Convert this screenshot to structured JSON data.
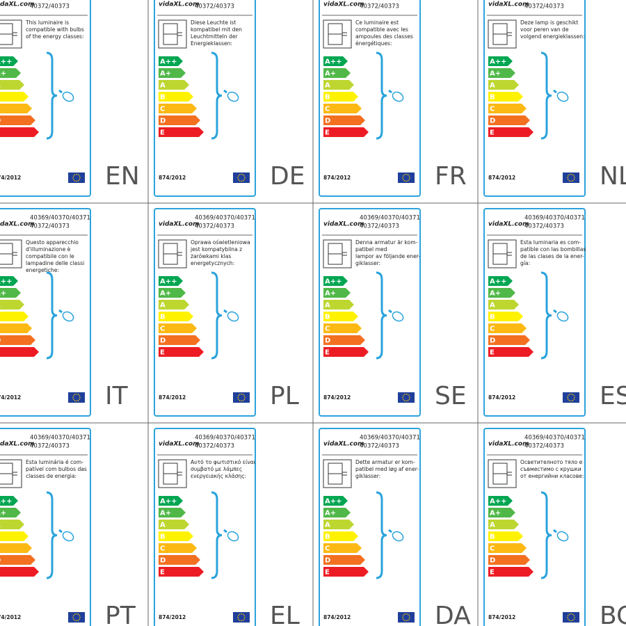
{
  "logo": "vidaXL.com",
  "models": [
    "40369/40370/40371",
    "40372/40373"
  ],
  "regulation": "874/2012",
  "energy_classes": [
    "A++",
    "A+",
    "A",
    "B",
    "C",
    "D",
    "E"
  ],
  "cells": [
    {
      "code": "EN",
      "text": [
        "This luminaire is",
        "compatible with bulbs",
        "of the energy classes:"
      ]
    },
    {
      "code": "DE",
      "text": [
        "Diese Leuchte ist",
        "kompatibel mit den",
        "Leuchtmitteln der",
        "Energieklassen:"
      ]
    },
    {
      "code": "FR",
      "text": [
        "Ce luminaire est",
        "compatible avec les",
        "ampoules des classes",
        "énergétiques:"
      ]
    },
    {
      "code": "NL",
      "text": [
        "Deze lamp is geschikt",
        "voor peren van de",
        "volgend energieklassen:"
      ]
    },
    {
      "code": "IT",
      "text": [
        "Questo apparecchio",
        "d'illuminazione è",
        "compatibile con le",
        "lampadine delle classi",
        "energetiche:"
      ]
    },
    {
      "code": "PL",
      "text": [
        "Oprawa oświetleniowa",
        "jest kompatybilna z",
        "żarówkami klas",
        "energetycznych:"
      ]
    },
    {
      "code": "SE",
      "text": [
        "Denna armatur är kom-",
        "patibel med",
        "lampor av följande ener-",
        "giklasser:"
      ]
    },
    {
      "code": "ES",
      "text": [
        "Esta luminaria es com-",
        "patible con las bombillas",
        "de las clases de la ener-",
        "gía:"
      ]
    },
    {
      "code": "PT",
      "text": [
        "Esta luminária é com-",
        "patível com bulbos das",
        "classes de energia:"
      ]
    },
    {
      "code": "EL",
      "text": [
        "Αυτό το φωτιστικό είναι",
        "συμβατό με λάμπες",
        "ενεργειακής κλάσης:"
      ]
    },
    {
      "code": "DA",
      "text": [
        "Dette armatur er kom-",
        "patibel med løg af ener-",
        "giklasser:"
      ]
    },
    {
      "code": "BG",
      "text": [
        "Осветителното тяло е",
        "съвместимо с крушки",
        "от енергийни класове:"
      ]
    }
  ]
}
